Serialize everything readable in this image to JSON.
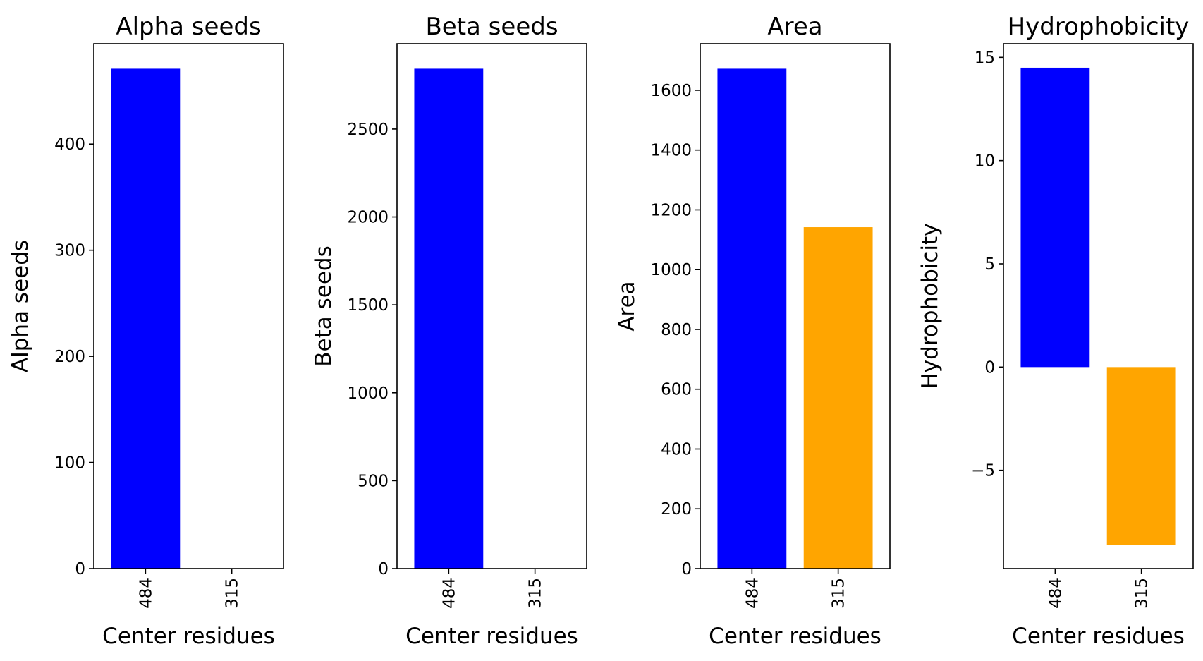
{
  "chart_data": [
    {
      "type": "bar",
      "title": "Alpha seeds",
      "xlabel": "Center residues",
      "ylabel": "Alpha seeds",
      "categories": [
        "484",
        "315"
      ],
      "values": [
        471,
        0
      ],
      "ylim": [
        0,
        494.55
      ],
      "yticks": [
        0,
        100,
        200,
        300,
        400
      ],
      "ytick_labels": [
        "0",
        "100",
        "200",
        "300",
        "400"
      ],
      "bar_colors": [
        "#0000ff",
        "#ffa500"
      ]
    },
    {
      "type": "bar",
      "title": "Beta seeds",
      "xlabel": "Center residues",
      "ylabel": "Beta seeds",
      "categories": [
        "484",
        "315"
      ],
      "values": [
        2843,
        0
      ],
      "ylim": [
        0,
        2985.15
      ],
      "yticks": [
        0,
        500,
        1000,
        1500,
        2000,
        2500
      ],
      "ytick_labels": [
        "0",
        "500",
        "1000",
        "1500",
        "2000",
        "2500"
      ],
      "bar_colors": [
        "#0000ff",
        "#ffa500"
      ]
    },
    {
      "type": "bar",
      "title": "Area",
      "xlabel": "Center residues",
      "ylabel": "Area",
      "categories": [
        "484",
        "315"
      ],
      "values": [
        1672,
        1142
      ],
      "ylim": [
        0,
        1755.6
      ],
      "yticks": [
        0,
        200,
        400,
        600,
        800,
        1000,
        1200,
        1400,
        1600
      ],
      "ytick_labels": [
        "0",
        "200",
        "400",
        "600",
        "800",
        "1000",
        "1200",
        "1400",
        "1600"
      ],
      "bar_colors": [
        "#0000ff",
        "#ffa500"
      ]
    },
    {
      "type": "bar",
      "title": "Hydrophobicity",
      "xlabel": "Center residues",
      "ylabel": "Hydrophobicity",
      "categories": [
        "484",
        "315"
      ],
      "values": [
        14.5,
        -8.6
      ],
      "ylim": [
        -9.76,
        15.66
      ],
      "yticks": [
        -5,
        0,
        5,
        10,
        15
      ],
      "ytick_labels": [
        "−5",
        "0",
        "5",
        "10",
        "15"
      ],
      "bar_colors": [
        "#0000ff",
        "#ffa500"
      ]
    }
  ]
}
